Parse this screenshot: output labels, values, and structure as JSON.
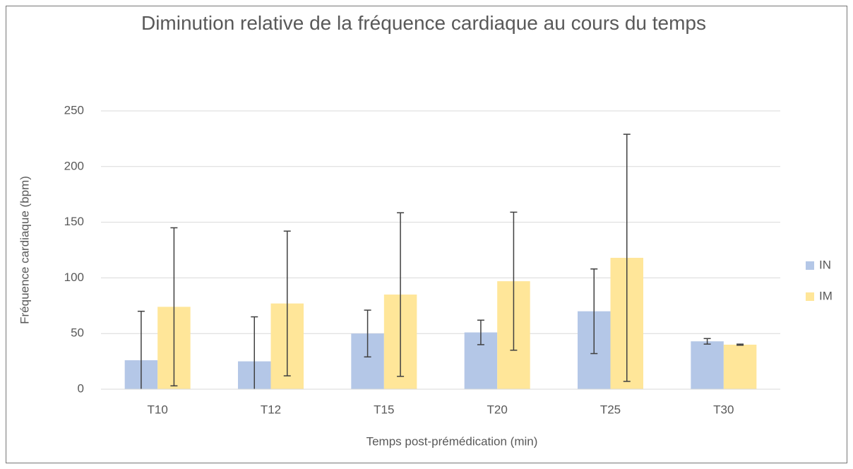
{
  "chart_data": {
    "type": "bar",
    "title": "Diminution relative de la fréquence cardiaque au cours du temps",
    "x_label": "Temps post-prémédication (min)",
    "y_label": "Fréquence cardiaque (bpm)",
    "categories": [
      "T10",
      "T12",
      "T15",
      "T20",
      "T25",
      "T30"
    ],
    "series": [
      {
        "name": "IN",
        "color": "#b4c7e7",
        "values": [
          26,
          25,
          50,
          51,
          70,
          43
        ],
        "errors": [
          44,
          40,
          21,
          11,
          38,
          2.5
        ]
      },
      {
        "name": "IM",
        "color": "#ffe699",
        "values": [
          74,
          77,
          85,
          97,
          118,
          40
        ],
        "errors": [
          71,
          65,
          73.5,
          62,
          111,
          0.5
        ]
      }
    ],
    "ylim": [
      0,
      250
    ],
    "yticks": [
      0,
      50,
      100,
      150,
      200,
      250
    ],
    "grid": true,
    "legend": "right"
  }
}
